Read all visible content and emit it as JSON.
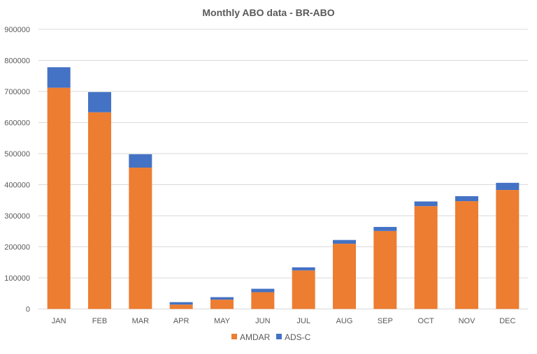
{
  "chart_data": {
    "type": "bar",
    "stacked": true,
    "title": "Monthly ABO data - BR-ABO",
    "xlabel": "",
    "ylabel": "",
    "ylim": [
      0,
      900000
    ],
    "yticks": [
      0,
      100000,
      200000,
      300000,
      400000,
      500000,
      600000,
      700000,
      800000,
      900000
    ],
    "grid": true,
    "legend_position": "bottom",
    "categories": [
      "JAN",
      "FEB",
      "MAR",
      "APR",
      "MAY",
      "JUN",
      "JUL",
      "AUG",
      "SEP",
      "OCT",
      "NOV",
      "DEC"
    ],
    "series": [
      {
        "name": "AMDAR",
        "color": "#ED7D31",
        "values": [
          712000,
          633000,
          455000,
          14000,
          30000,
          54000,
          124000,
          210000,
          251000,
          331000,
          347000,
          383000
        ]
      },
      {
        "name": "ADS-C",
        "color": "#4472C4",
        "values": [
          66000,
          65000,
          43000,
          8000,
          8000,
          11000,
          10000,
          12000,
          13000,
          15000,
          16000,
          23000
        ]
      }
    ]
  }
}
